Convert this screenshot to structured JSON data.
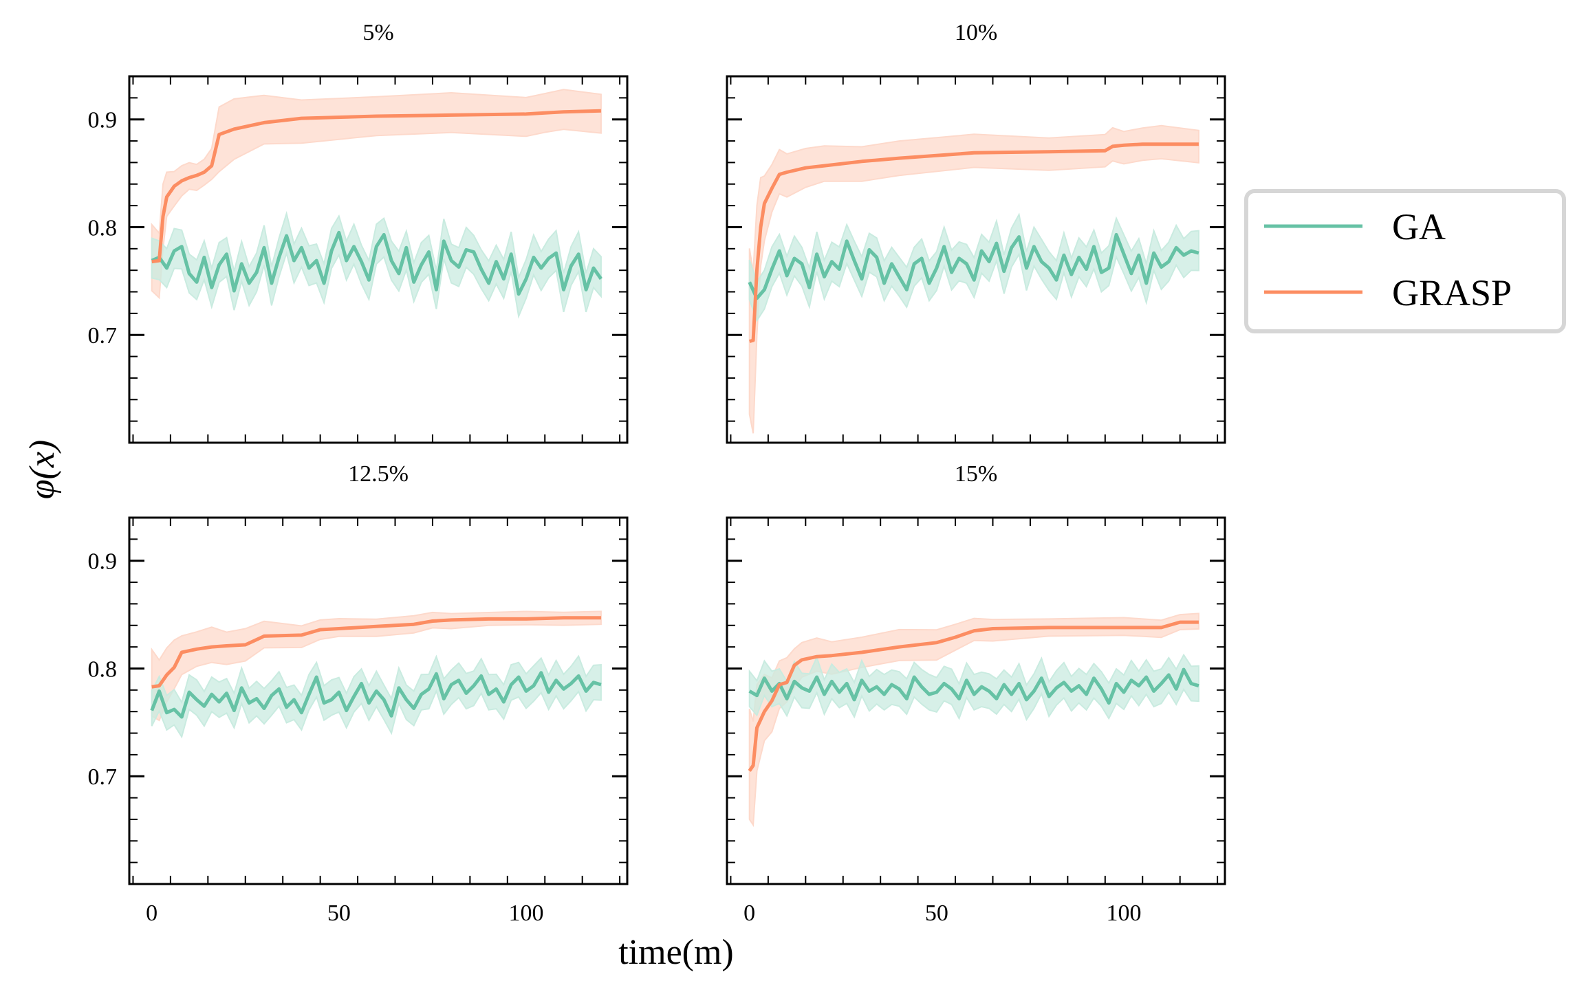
{
  "chart_data": {
    "type": "line",
    "ylabel": "φ(x)",
    "xlabel": "time(m)",
    "xlim": [
      -6,
      127
    ],
    "ylim": [
      0.6,
      0.94
    ],
    "xticks": [
      0,
      50,
      100
    ],
    "yticks": [
      0.7,
      0.8,
      0.9
    ],
    "legend": {
      "position": "right-outside",
      "entries": [
        {
          "name": "GA",
          "color": "#66c2a5"
        },
        {
          "name": "GRASP",
          "color": "#fc8d62"
        }
      ]
    },
    "colors": {
      "GA": "#66c2a5",
      "GRASP": "#fc8d62",
      "GA_band": "#c9ebe0",
      "GRASP_band": "#fdd9cb"
    },
    "panels": [
      {
        "title": "5%",
        "series": [
          {
            "name": "GRASP",
            "shaded_band": true,
            "x": [
              0,
              2,
              3,
              4,
              6,
              8,
              10,
              12,
              14,
              16,
              18,
              22,
              30,
              40,
              60,
              80,
              100,
              105,
              110,
              120
            ],
            "y": [
              0.768,
              0.769,
              0.81,
              0.828,
              0.838,
              0.843,
              0.846,
              0.848,
              0.851,
              0.857,
              0.886,
              0.891,
              0.897,
              0.901,
              0.903,
              0.904,
              0.905,
              0.906,
              0.907,
              0.908
            ],
            "band_width": [
              0.03,
              0.03,
              0.03,
              0.02,
              0.016,
              0.014,
              0.012,
              0.012,
              0.012,
              0.014,
              0.03,
              0.028,
              0.022,
              0.02,
              0.018,
              0.018,
              0.018,
              0.018,
              0.018,
              0.018
            ]
          },
          {
            "name": "GA",
            "shaded_band": true,
            "band_width": 0.018,
            "x": [
              0,
              2,
              4,
              6,
              8,
              10,
              12,
              14,
              16,
              18,
              20,
              22,
              24,
              26,
              28,
              30,
              32,
              34,
              36,
              38,
              40,
              42,
              44,
              46,
              48,
              50,
              52,
              54,
              56,
              58,
              60,
              62,
              64,
              66,
              68,
              70,
              72,
              74,
              76,
              78,
              80,
              82,
              84,
              86,
              88,
              90,
              92,
              94,
              96,
              98,
              100,
              102,
              104,
              106,
              108,
              110,
              112,
              114,
              116,
              118,
              120
            ],
            "y": [
              0.769,
              0.772,
              0.762,
              0.778,
              0.782,
              0.757,
              0.749,
              0.772,
              0.744,
              0.765,
              0.775,
              0.741,
              0.766,
              0.748,
              0.758,
              0.781,
              0.748,
              0.772,
              0.792,
              0.769,
              0.781,
              0.762,
              0.769,
              0.748,
              0.778,
              0.795,
              0.769,
              0.782,
              0.768,
              0.751,
              0.782,
              0.793,
              0.769,
              0.757,
              0.781,
              0.749,
              0.765,
              0.777,
              0.742,
              0.787,
              0.769,
              0.763,
              0.779,
              0.777,
              0.761,
              0.748,
              0.768,
              0.752,
              0.775,
              0.738,
              0.752,
              0.772,
              0.762,
              0.771,
              0.776,
              0.742,
              0.764,
              0.775,
              0.742,
              0.762,
              0.752
            ]
          }
        ]
      },
      {
        "title": "10%",
        "series": [
          {
            "name": "GRASP",
            "shaded_band": true,
            "x": [
              0,
              1,
              2,
              3,
              4,
              6,
              8,
              10,
              15,
              20,
              30,
              40,
              60,
              80,
              95,
              97,
              100,
              105,
              110,
              120
            ],
            "y": [
              0.694,
              0.695,
              0.76,
              0.8,
              0.822,
              0.836,
              0.849,
              0.851,
              0.855,
              0.857,
              0.861,
              0.864,
              0.869,
              0.87,
              0.871,
              0.875,
              0.876,
              0.877,
              0.877,
              0.877
            ],
            "band_width": [
              0.075,
              0.075,
              0.06,
              0.04,
              0.03,
              0.022,
              0.02,
              0.02,
              0.018,
              0.016,
              0.016,
              0.016,
              0.015,
              0.015,
              0.015,
              0.015,
              0.015,
              0.015,
              0.015,
              0.015
            ]
          },
          {
            "name": "GA",
            "shaded_band": true,
            "band_width": 0.018,
            "x": [
              0,
              2,
              4,
              6,
              8,
              10,
              12,
              14,
              16,
              18,
              20,
              22,
              24,
              26,
              28,
              30,
              32,
              34,
              36,
              38,
              40,
              42,
              44,
              46,
              48,
              50,
              52,
              54,
              56,
              58,
              60,
              62,
              64,
              66,
              68,
              70,
              72,
              74,
              76,
              78,
              80,
              82,
              84,
              86,
              88,
              90,
              92,
              94,
              96,
              98,
              100,
              102,
              104,
              106,
              108,
              110,
              112,
              114,
              116,
              118,
              120
            ],
            "y": [
              0.749,
              0.734,
              0.742,
              0.761,
              0.778,
              0.755,
              0.771,
              0.766,
              0.744,
              0.775,
              0.754,
              0.768,
              0.761,
              0.787,
              0.769,
              0.752,
              0.779,
              0.772,
              0.748,
              0.766,
              0.754,
              0.742,
              0.766,
              0.771,
              0.748,
              0.762,
              0.782,
              0.758,
              0.771,
              0.766,
              0.751,
              0.778,
              0.768,
              0.785,
              0.759,
              0.781,
              0.791,
              0.762,
              0.782,
              0.768,
              0.762,
              0.751,
              0.774,
              0.756,
              0.772,
              0.761,
              0.782,
              0.758,
              0.762,
              0.793,
              0.775,
              0.757,
              0.774,
              0.748,
              0.776,
              0.763,
              0.768,
              0.781,
              0.774,
              0.778,
              0.776
            ]
          }
        ]
      },
      {
        "title": "12.5%",
        "series": [
          {
            "name": "GRASP",
            "shaded_band": true,
            "x": [
              0,
              2,
              4,
              6,
              8,
              12,
              16,
              20,
              25,
              30,
              40,
              45,
              50,
              60,
              70,
              75,
              80,
              90,
              100,
              110,
              120
            ],
            "y": [
              0.783,
              0.784,
              0.794,
              0.801,
              0.815,
              0.818,
              0.82,
              0.821,
              0.822,
              0.83,
              0.831,
              0.836,
              0.837,
              0.839,
              0.841,
              0.844,
              0.845,
              0.846,
              0.846,
              0.847,
              0.847
            ],
            "band_width": [
              0.03,
              0.028,
              0.025,
              0.022,
              0.018,
              0.016,
              0.016,
              0.015,
              0.015,
              0.012,
              0.01,
              0.009,
              0.008,
              0.008,
              0.008,
              0.007,
              0.007,
              0.006,
              0.006,
              0.006,
              0.006
            ]
          },
          {
            "name": "GA",
            "shaded_band": true,
            "band_width": 0.016,
            "x": [
              0,
              2,
              4,
              6,
              8,
              10,
              12,
              14,
              16,
              18,
              20,
              22,
              24,
              26,
              28,
              30,
              32,
              34,
              36,
              38,
              40,
              42,
              44,
              46,
              48,
              50,
              52,
              54,
              56,
              58,
              60,
              62,
              64,
              66,
              68,
              70,
              72,
              74,
              76,
              78,
              80,
              82,
              84,
              86,
              88,
              90,
              92,
              94,
              96,
              98,
              100,
              102,
              104,
              106,
              108,
              110,
              112,
              114,
              116,
              118,
              120
            ],
            "y": [
              0.761,
              0.779,
              0.759,
              0.762,
              0.755,
              0.778,
              0.771,
              0.765,
              0.776,
              0.769,
              0.777,
              0.761,
              0.782,
              0.768,
              0.772,
              0.763,
              0.775,
              0.781,
              0.764,
              0.771,
              0.759,
              0.776,
              0.792,
              0.768,
              0.771,
              0.778,
              0.761,
              0.774,
              0.786,
              0.768,
              0.779,
              0.771,
              0.756,
              0.782,
              0.771,
              0.763,
              0.776,
              0.781,
              0.795,
              0.772,
              0.785,
              0.789,
              0.777,
              0.784,
              0.793,
              0.776,
              0.781,
              0.769,
              0.785,
              0.792,
              0.779,
              0.784,
              0.796,
              0.778,
              0.789,
              0.781,
              0.786,
              0.793,
              0.779,
              0.787,
              0.785
            ]
          }
        ]
      },
      {
        "title": "15%",
        "series": [
          {
            "name": "GRASP",
            "shaded_band": true,
            "x": [
              0,
              1,
              2,
              4,
              6,
              8,
              10,
              12,
              14,
              18,
              22,
              30,
              40,
              50,
              55,
              60,
              65,
              80,
              100,
              110,
              115,
              120
            ],
            "y": [
              0.705,
              0.71,
              0.745,
              0.76,
              0.77,
              0.785,
              0.787,
              0.803,
              0.808,
              0.811,
              0.812,
              0.815,
              0.82,
              0.824,
              0.829,
              0.835,
              0.837,
              0.838,
              0.838,
              0.838,
              0.843,
              0.843
            ],
            "band_width": [
              0.05,
              0.048,
              0.04,
              0.03,
              0.025,
              0.022,
              0.02,
              0.018,
              0.016,
              0.015,
              0.015,
              0.014,
              0.014,
              0.014,
              0.012,
              0.01,
              0.01,
              0.008,
              0.008,
              0.008,
              0.007,
              0.007
            ]
          },
          {
            "name": "GA",
            "shaded_band": true,
            "band_width": 0.016,
            "x": [
              0,
              2,
              4,
              6,
              8,
              10,
              12,
              14,
              16,
              18,
              20,
              22,
              24,
              26,
              28,
              30,
              32,
              34,
              36,
              38,
              40,
              42,
              44,
              46,
              48,
              50,
              52,
              54,
              56,
              58,
              60,
              62,
              64,
              66,
              68,
              70,
              72,
              74,
              76,
              78,
              80,
              82,
              84,
              86,
              88,
              90,
              92,
              94,
              96,
              98,
              100,
              102,
              104,
              106,
              108,
              110,
              112,
              114,
              116,
              118,
              120
            ],
            "y": [
              0.779,
              0.775,
              0.791,
              0.779,
              0.786,
              0.772,
              0.788,
              0.782,
              0.779,
              0.792,
              0.776,
              0.788,
              0.778,
              0.786,
              0.771,
              0.789,
              0.779,
              0.783,
              0.776,
              0.785,
              0.781,
              0.772,
              0.792,
              0.783,
              0.776,
              0.778,
              0.786,
              0.781,
              0.772,
              0.789,
              0.776,
              0.783,
              0.779,
              0.772,
              0.785,
              0.776,
              0.786,
              0.771,
              0.779,
              0.791,
              0.774,
              0.782,
              0.787,
              0.779,
              0.784,
              0.776,
              0.791,
              0.781,
              0.768,
              0.786,
              0.778,
              0.789,
              0.784,
              0.792,
              0.779,
              0.786,
              0.794,
              0.781,
              0.799,
              0.786,
              0.784
            ]
          }
        ]
      }
    ]
  }
}
